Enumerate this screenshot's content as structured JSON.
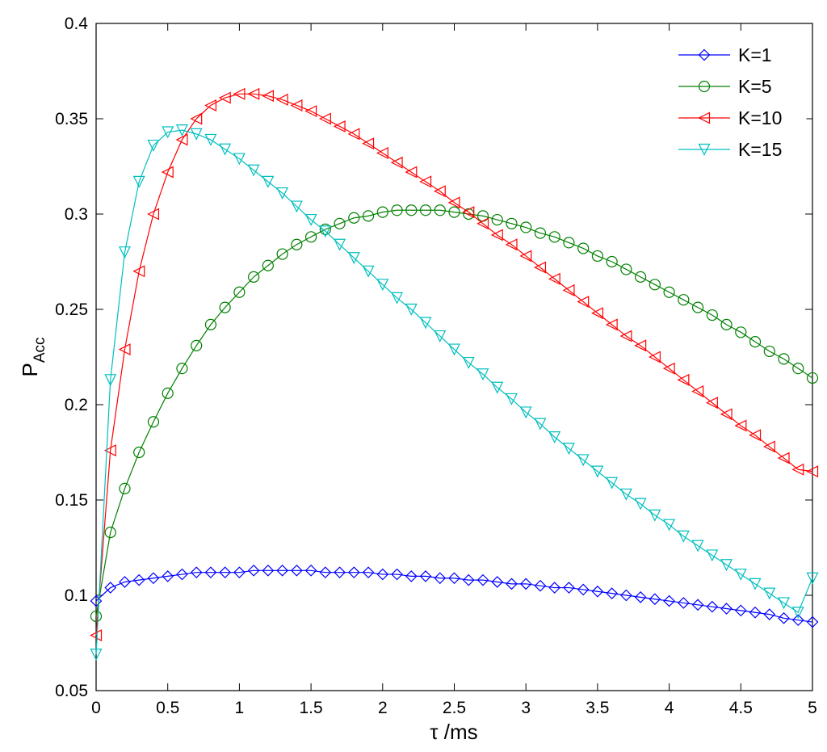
{
  "chart_data": {
    "type": "line",
    "xlabel": "τ /ms",
    "ylabel_main": "P",
    "ylabel_sub": "Acc",
    "xlim": [
      0,
      5
    ],
    "ylim": [
      0.05,
      0.4
    ],
    "xticks": [
      0,
      0.5,
      1,
      1.5,
      2,
      2.5,
      3,
      3.5,
      4,
      4.5,
      5
    ],
    "xtick_labels": [
      "0",
      "0.5",
      "1",
      "1.5",
      "2",
      "2.5",
      "3",
      "3.5",
      "4",
      "4.5",
      "5"
    ],
    "yticks": [
      0.05,
      0.1,
      0.15,
      0.2,
      0.25,
      0.3,
      0.35,
      0.4
    ],
    "ytick_labels": [
      "0.05",
      "0.1",
      "0.15",
      "0.2",
      "0.25",
      "0.3",
      "0.35",
      "0.4"
    ],
    "grid": false,
    "legend_position": "top-right",
    "x": [
      0,
      0.1,
      0.2,
      0.3,
      0.4,
      0.5,
      0.6,
      0.7,
      0.8,
      0.9,
      1.0,
      1.1,
      1.2,
      1.3,
      1.4,
      1.5,
      1.6,
      1.7,
      1.8,
      1.9,
      2.0,
      2.1,
      2.2,
      2.3,
      2.4,
      2.5,
      2.6,
      2.7,
      2.8,
      2.9,
      3.0,
      3.1,
      3.2,
      3.3,
      3.4,
      3.5,
      3.6,
      3.7,
      3.8,
      3.9,
      4.0,
      4.1,
      4.2,
      4.3,
      4.4,
      4.5,
      4.6,
      4.7,
      4.8,
      4.9,
      5.0
    ],
    "series": [
      {
        "name": "K=1",
        "color": "#0000ff",
        "marker": "diamond",
        "values": [
          0.097,
          0.104,
          0.107,
          0.108,
          0.109,
          0.11,
          0.111,
          0.112,
          0.112,
          0.112,
          0.112,
          0.113,
          0.113,
          0.113,
          0.113,
          0.113,
          0.112,
          0.112,
          0.112,
          0.112,
          0.111,
          0.111,
          0.11,
          0.11,
          0.109,
          0.109,
          0.108,
          0.108,
          0.107,
          0.106,
          0.106,
          0.105,
          0.104,
          0.104,
          0.103,
          0.102,
          0.101,
          0.1,
          0.099,
          0.098,
          0.097,
          0.096,
          0.095,
          0.094,
          0.093,
          0.092,
          0.091,
          0.09,
          0.088,
          0.087,
          0.086
        ]
      },
      {
        "name": "K=5",
        "color": "#008000",
        "marker": "circle",
        "values": [
          0.089,
          0.133,
          0.156,
          0.175,
          0.191,
          0.206,
          0.219,
          0.231,
          0.242,
          0.251,
          0.259,
          0.267,
          0.273,
          0.279,
          0.284,
          0.288,
          0.292,
          0.295,
          0.298,
          0.299,
          0.301,
          0.302,
          0.302,
          0.302,
          0.302,
          0.301,
          0.3,
          0.299,
          0.297,
          0.295,
          0.293,
          0.29,
          0.288,
          0.285,
          0.282,
          0.278,
          0.275,
          0.271,
          0.267,
          0.263,
          0.259,
          0.255,
          0.251,
          0.247,
          0.242,
          0.238,
          0.233,
          0.228,
          0.224,
          0.219,
          0.214
        ]
      },
      {
        "name": "K=10",
        "color": "#ff0000",
        "marker": "triangle-left",
        "values": [
          0.079,
          0.176,
          0.229,
          0.27,
          0.3,
          0.322,
          0.339,
          0.35,
          0.357,
          0.361,
          0.363,
          0.363,
          0.362,
          0.36,
          0.357,
          0.354,
          0.35,
          0.346,
          0.342,
          0.337,
          0.332,
          0.327,
          0.322,
          0.317,
          0.312,
          0.306,
          0.301,
          0.295,
          0.289,
          0.284,
          0.278,
          0.272,
          0.266,
          0.26,
          0.254,
          0.248,
          0.242,
          0.236,
          0.231,
          0.225,
          0.219,
          0.213,
          0.207,
          0.201,
          0.195,
          0.189,
          0.184,
          0.178,
          0.172,
          0.166,
          0.165
        ]
      },
      {
        "name": "K=15",
        "color": "#00bfbf",
        "marker": "triangle-down",
        "values": [
          0.069,
          0.213,
          0.28,
          0.317,
          0.336,
          0.343,
          0.344,
          0.342,
          0.339,
          0.334,
          0.329,
          0.323,
          0.317,
          0.311,
          0.304,
          0.297,
          0.291,
          0.284,
          0.277,
          0.27,
          0.263,
          0.256,
          0.25,
          0.243,
          0.236,
          0.229,
          0.222,
          0.216,
          0.209,
          0.203,
          0.196,
          0.19,
          0.183,
          0.177,
          0.171,
          0.165,
          0.159,
          0.153,
          0.148,
          0.142,
          0.137,
          0.131,
          0.126,
          0.121,
          0.116,
          0.111,
          0.106,
          0.101,
          0.096,
          0.091,
          0.109
        ]
      }
    ]
  }
}
